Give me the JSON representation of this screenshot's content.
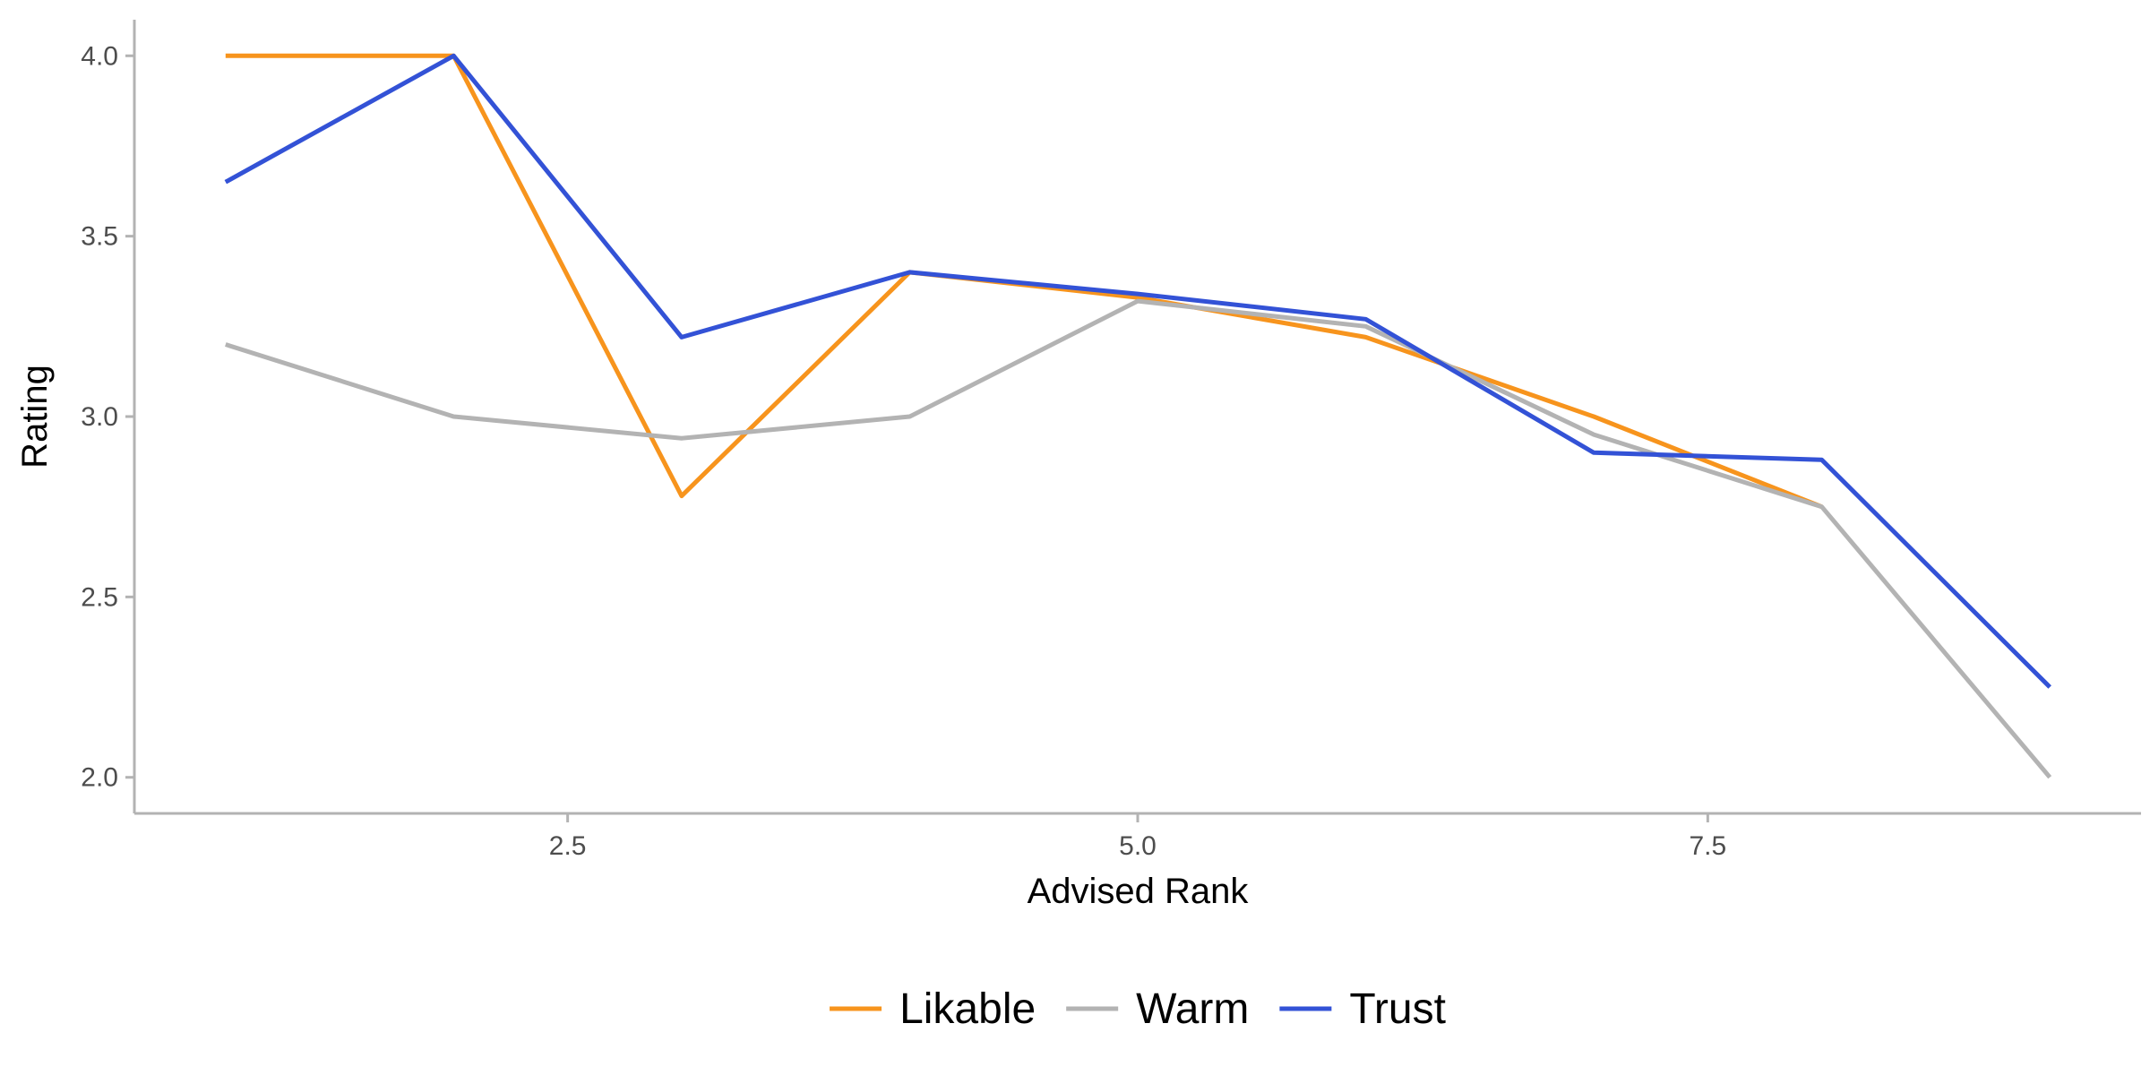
{
  "chart_data": {
    "type": "line",
    "title": "",
    "xlabel": "Advised Rank",
    "ylabel": "Rating",
    "xlim": [
      0.6,
      9.4
    ],
    "ylim": [
      1.9,
      4.1
    ],
    "x_ticks": [
      2.5,
      5.0,
      7.5
    ],
    "x_tick_labels": [
      "2.5",
      "5.0",
      "7.5"
    ],
    "y_ticks": [
      2.0,
      2.5,
      3.0,
      3.5,
      4.0
    ],
    "y_tick_labels": [
      "2.0",
      "2.5",
      "3.0",
      "3.5",
      "4.0"
    ],
    "grid": false,
    "legend_position": "bottom",
    "x": [
      1,
      2,
      3,
      4,
      5,
      6,
      7,
      8,
      9
    ],
    "series": [
      {
        "name": "Likable",
        "color": "#F7941D",
        "values": [
          4.0,
          4.0,
          2.78,
          3.4,
          3.33,
          3.22,
          3.0,
          2.75,
          null
        ]
      },
      {
        "name": "Warm",
        "color": "#B3B3B3",
        "values": [
          3.2,
          3.0,
          2.94,
          3.0,
          3.32,
          3.25,
          2.95,
          2.75,
          2.0
        ]
      },
      {
        "name": "Trust",
        "color": "#3352D6",
        "values": [
          3.65,
          4.0,
          3.22,
          3.4,
          3.34,
          3.27,
          2.9,
          2.88,
          2.25
        ]
      }
    ]
  }
}
